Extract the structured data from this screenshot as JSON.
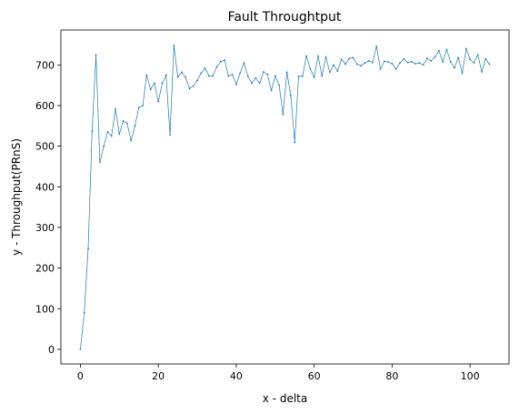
{
  "chart_data": {
    "type": "line",
    "title": "Fault Throughtput",
    "xlabel": "x - delta",
    "ylabel": "y - Throughput(PRnS)",
    "xlim": [
      -5,
      110
    ],
    "ylim": [
      -36,
      786
    ],
    "xticks": [
      0,
      20,
      40,
      60,
      80,
      100
    ],
    "yticks": [
      0,
      100,
      200,
      300,
      400,
      500,
      600,
      700
    ],
    "grid": false,
    "legend": "none",
    "line_color": "#1f77b4",
    "series": [
      {
        "x": [
          0,
          1,
          2,
          3,
          4,
          5,
          6,
          7,
          8,
          9,
          10,
          11,
          12,
          13,
          14,
          15,
          16,
          17,
          18,
          19,
          20,
          21,
          22,
          23,
          24,
          25,
          26,
          27,
          28,
          29,
          30,
          31,
          32,
          33,
          34,
          35,
          36,
          37,
          38,
          39,
          40,
          41,
          42,
          43,
          44,
          45,
          46,
          47,
          48,
          49,
          50,
          51,
          52,
          53,
          54,
          55,
          56,
          57,
          58,
          59,
          60,
          61,
          62,
          63,
          64,
          65,
          66,
          67,
          68,
          69,
          70,
          71,
          72,
          73,
          74,
          75,
          76,
          77,
          78,
          79,
          80,
          81,
          82,
          83,
          84,
          85,
          86,
          87,
          88,
          89,
          90,
          91,
          92,
          93,
          94,
          95,
          96,
          97,
          98,
          99,
          100,
          101,
          102,
          103,
          104,
          105
        ],
        "values": [
          0,
          90,
          248,
          537,
          725,
          460,
          500,
          535,
          525,
          592,
          530,
          562,
          556,
          514,
          550,
          595,
          600,
          675,
          640,
          655,
          610,
          655,
          675,
          528,
          748,
          670,
          682,
          670,
          642,
          648,
          662,
          680,
          692,
          673,
          673,
          695,
          708,
          712,
          673,
          676,
          652,
          680,
          705,
          672,
          655,
          668,
          655,
          683,
          677,
          637,
          673,
          650,
          578,
          682,
          625,
          510,
          672,
          672,
          722,
          690,
          670,
          722,
          673,
          720,
          682,
          700,
          685,
          714,
          702,
          716,
          718,
          702,
          698,
          705,
          710,
          706,
          746,
          690,
          709,
          707,
          703,
          690,
          705,
          715,
          706,
          708,
          703,
          705,
          700,
          716,
          710,
          720,
          735,
          707,
          738,
          708,
          693,
          718,
          680,
          740,
          714,
          705,
          725,
          683,
          715,
          702
        ]
      }
    ]
  }
}
